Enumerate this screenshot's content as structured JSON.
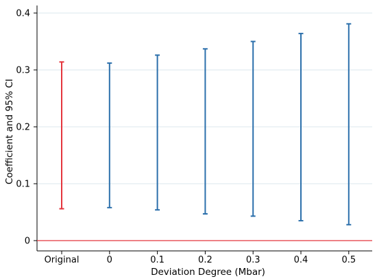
{
  "chart_data": {
    "type": "errorbar",
    "title": "",
    "xlabel": "Deviation Degree (Mbar)",
    "ylabel": "Coefficient and 95% CI",
    "categories": [
      "Original",
      "0",
      "0.1",
      "0.2",
      "0.3",
      "0.4",
      "0.5"
    ],
    "intervals": [
      {
        "label": "Original",
        "lower": 0.056,
        "upper": 0.314,
        "color": "#e4343c"
      },
      {
        "label": "0",
        "lower": 0.058,
        "upper": 0.312,
        "color": "#2b6fab"
      },
      {
        "label": "0.1",
        "lower": 0.054,
        "upper": 0.326,
        "color": "#2b6fab"
      },
      {
        "label": "0.2",
        "lower": 0.047,
        "upper": 0.337,
        "color": "#2b6fab"
      },
      {
        "label": "0.3",
        "lower": 0.043,
        "upper": 0.35,
        "color": "#2b6fab"
      },
      {
        "label": "0.4",
        "lower": 0.035,
        "upper": 0.364,
        "color": "#2b6fab"
      },
      {
        "label": "0.5",
        "lower": 0.028,
        "upper": 0.381,
        "color": "#2b6fab"
      }
    ],
    "yticks": [
      "0",
      "0.1",
      "0.2",
      "0.3",
      "0.4"
    ],
    "ylim": [
      0,
      0.4
    ],
    "reference_line": {
      "y": 0,
      "color": "#e4343c"
    },
    "grid": true,
    "grid_color": "#dbe7ee"
  }
}
